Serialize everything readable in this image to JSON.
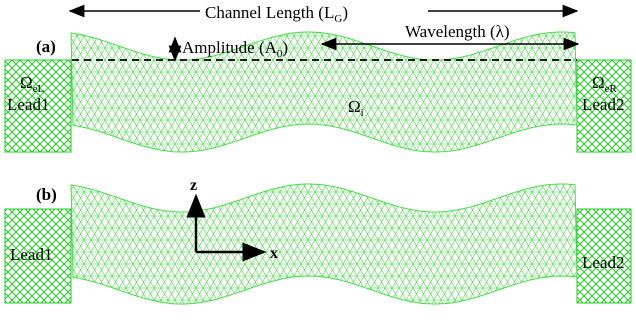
{
  "figure": {
    "top_labels": {
      "channel_length": "Channel Length (L",
      "channel_length_sub": "G",
      "channel_length_close": ")",
      "amplitude": "Amplitude (A",
      "amplitude_sub": "0",
      "amplitude_close": ")",
      "wavelength": "Wavelength (λ)"
    },
    "panel_a": {
      "label": "(a)",
      "omega_left": "Ω",
      "omega_left_sub": "eL",
      "omega_right": "Ω",
      "omega_right_sub": "eR",
      "omega_inner": "Ω",
      "omega_inner_sub": "i",
      "lead_left": "Lead1",
      "lead_right": "Lead2"
    },
    "panel_b": {
      "label": "(b)",
      "lead_left": "Lead1",
      "lead_right": "Lead2",
      "axis_z": "z",
      "axis_x": "x"
    },
    "colors": {
      "mesh": "#44dd44",
      "lead": "#22cc22",
      "ink": "#000000"
    }
  }
}
